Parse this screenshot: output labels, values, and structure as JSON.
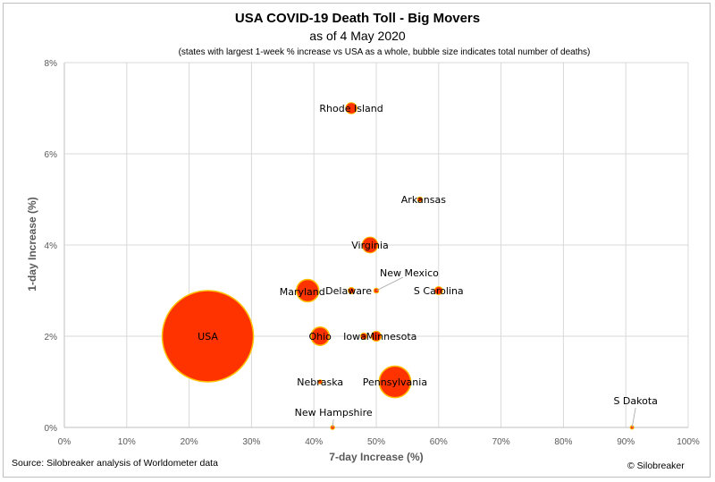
{
  "header": {
    "title": "USA COVID-19 Death Toll - Big Movers",
    "subtitle": "as of 4 May 2020",
    "note": "(states with largest 1-week % increase vs USA as a whole, bubble size indicates total number of deaths)"
  },
  "footer": {
    "source": "Source: Silobreaker analysis of Worldometer data",
    "copyright": "© Silobreaker"
  },
  "colors": {
    "bubble_fill": "#ff3300",
    "bubble_stroke": "#ffc000",
    "grid": "#d9d9d9",
    "axis": "#bfbfbf"
  },
  "chart_data": {
    "type": "bubble",
    "title": "USA COVID-19 Death Toll - Big Movers",
    "xlabel": "7-day Increase (%)",
    "ylabel": "1-day Increase (%)",
    "xlim": [
      0,
      100
    ],
    "ylim": [
      0,
      8
    ],
    "xticks": [
      "0%",
      "10%",
      "20%",
      "30%",
      "40%",
      "50%",
      "60%",
      "70%",
      "80%",
      "90%",
      "100%"
    ],
    "yticks": [
      "0%",
      "2%",
      "4%",
      "6%",
      "8%"
    ],
    "grid": true,
    "points": [
      {
        "name": "USA",
        "x": 23,
        "y": 2.0,
        "size": 100
      },
      {
        "name": "Rhode Island",
        "x": 46,
        "y": 7.0,
        "size": 1.5
      },
      {
        "name": "Arkansas",
        "x": 57,
        "y": 5.0,
        "size": 0.3
      },
      {
        "name": "Virginia",
        "x": 49,
        "y": 4.0,
        "size": 3
      },
      {
        "name": "New Mexico",
        "x": 50,
        "y": 3.0,
        "size": 0.3
      },
      {
        "name": "Maryland",
        "x": 39,
        "y": 3.0,
        "size": 6
      },
      {
        "name": "Delaware",
        "x": 46,
        "y": 3.0,
        "size": 0.5
      },
      {
        "name": "S Carolina",
        "x": 60,
        "y": 3.0,
        "size": 0.8
      },
      {
        "name": "Ohio",
        "x": 41,
        "y": 2.0,
        "size": 4
      },
      {
        "name": "Iowa",
        "x": 48,
        "y": 2.0,
        "size": 0.5
      },
      {
        "name": "Minnesota",
        "x": 50,
        "y": 2.0,
        "size": 1.2
      },
      {
        "name": "Nebraska",
        "x": 41,
        "y": 1.0,
        "size": 0.2
      },
      {
        "name": "Pennsylvania",
        "x": 53,
        "y": 1.0,
        "size": 12
      },
      {
        "name": "New Hampshire",
        "x": 43,
        "y": 0.0,
        "size": 0.2
      },
      {
        "name": "S Dakota",
        "x": 91,
        "y": 0.0,
        "size": 0.1
      }
    ]
  }
}
